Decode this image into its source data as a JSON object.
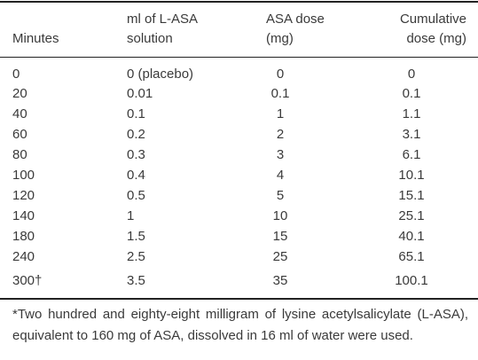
{
  "table": {
    "header": [
      "Minutes",
      "ml of L-ASA solution",
      "ASA dose (mg)",
      "Cumulative dose (mg)"
    ],
    "rows": [
      [
        "0",
        "0 (placebo)",
        "0",
        "0"
      ],
      [
        "20",
        "0.01",
        "0.1",
        "0.1"
      ],
      [
        "40",
        "0.1",
        "1",
        "1.1"
      ],
      [
        "60",
        "0.2",
        "2",
        "3.1"
      ],
      [
        "80",
        "0.3",
        "3",
        "6.1"
      ],
      [
        "100",
        "0.4",
        "4",
        "10.1"
      ],
      [
        "120",
        "0.5",
        "5",
        "15.1"
      ],
      [
        "140",
        "1",
        "10",
        "25.1"
      ],
      [
        "180",
        "1.5",
        "15",
        "40.1"
      ],
      [
        "240",
        "2.5",
        "25",
        "65.1"
      ],
      [
        "300†",
        "3.5",
        "35",
        "100.1"
      ]
    ]
  },
  "footnote": "*Two hundred and eighty-eight milligram of lysine acetylsalicylate (L-ASA), equivalent to 160 mg of ASA, dissolved in 16 ml of water were used."
}
